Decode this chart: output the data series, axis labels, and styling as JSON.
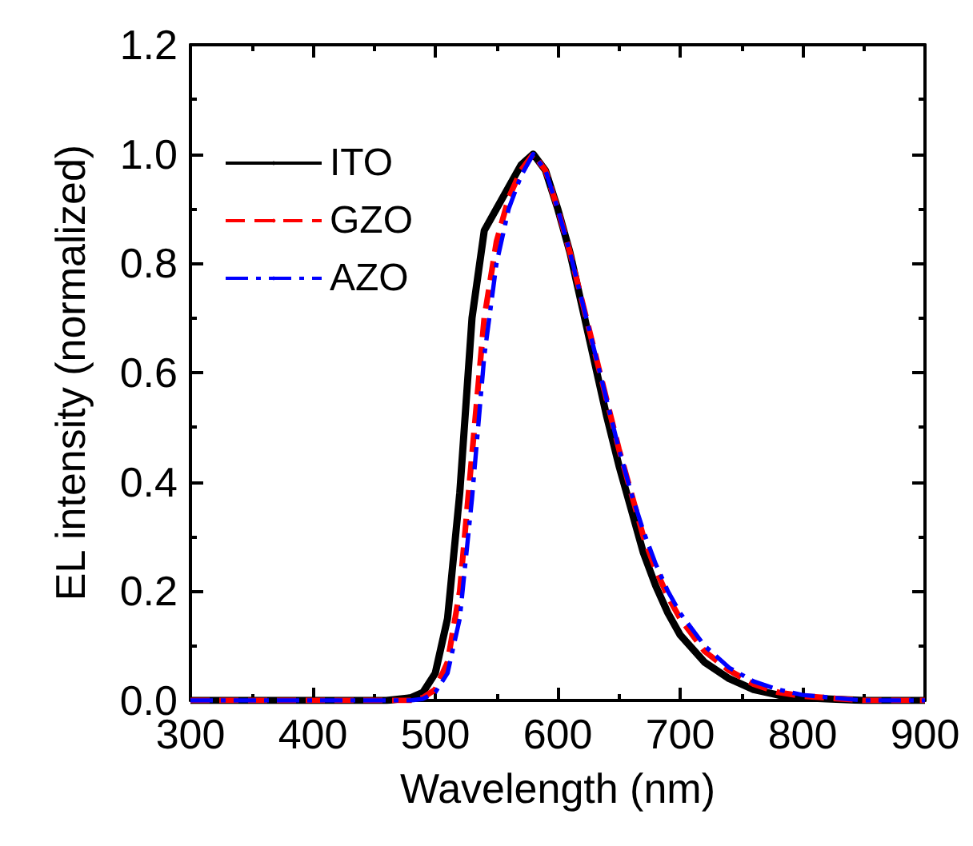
{
  "chart_data": {
    "type": "line",
    "xlabel": "Wavelength (nm)",
    "ylabel": "EL intensity (normalized)",
    "xlim": [
      300,
      900
    ],
    "ylim": [
      0,
      1.2
    ],
    "xticks": [
      300,
      400,
      500,
      600,
      700,
      800,
      900
    ],
    "yticks": [
      {
        "value": 0,
        "label": "0.0"
      },
      {
        "value": 0.2,
        "label": "0.2"
      },
      {
        "value": 0.4,
        "label": "0.4"
      },
      {
        "value": 0.6,
        "label": "0.6"
      },
      {
        "value": 0.8,
        "label": "0.8"
      },
      {
        "value": 1,
        "label": "1.0"
      },
      {
        "value": 1.2,
        "label": "1.2"
      }
    ],
    "grid": false,
    "legend": "top left",
    "marker": "none",
    "x": [
      300,
      400,
      460,
      480,
      490,
      500,
      510,
      520,
      530,
      540,
      550,
      560,
      570,
      580,
      590,
      600,
      610,
      620,
      630,
      640,
      650,
      660,
      670,
      680,
      690,
      700,
      720,
      740,
      760,
      780,
      800,
      850,
      900
    ],
    "series": [
      {
        "name": "ITO",
        "color": "#000000",
        "line_style": "solid",
        "values": [
          0,
          0,
          0,
          0.005,
          0.015,
          0.05,
          0.15,
          0.38,
          0.7,
          0.86,
          0.9,
          0.94,
          0.98,
          1.0,
          0.97,
          0.9,
          0.82,
          0.72,
          0.62,
          0.52,
          0.43,
          0.35,
          0.27,
          0.21,
          0.16,
          0.12,
          0.07,
          0.04,
          0.02,
          0.01,
          0.005,
          0,
          0
        ]
      },
      {
        "name": "GZO",
        "color": "#ff0000",
        "line_style": "dashed",
        "values": [
          0,
          0,
          0,
          0,
          0.005,
          0.02,
          0.07,
          0.2,
          0.45,
          0.7,
          0.84,
          0.92,
          0.97,
          1.0,
          0.97,
          0.9,
          0.82,
          0.73,
          0.64,
          0.55,
          0.46,
          0.38,
          0.3,
          0.24,
          0.19,
          0.15,
          0.09,
          0.055,
          0.03,
          0.015,
          0.008,
          0,
          0
        ]
      },
      {
        "name": "AZO",
        "color": "#0000ff",
        "line_style": "dashdot",
        "values": [
          0,
          0,
          0,
          0,
          0.003,
          0.015,
          0.05,
          0.15,
          0.37,
          0.63,
          0.8,
          0.9,
          0.96,
          1.0,
          0.97,
          0.9,
          0.82,
          0.73,
          0.64,
          0.55,
          0.46,
          0.38,
          0.31,
          0.25,
          0.2,
          0.16,
          0.1,
          0.06,
          0.035,
          0.02,
          0.01,
          0,
          0
        ]
      }
    ]
  }
}
